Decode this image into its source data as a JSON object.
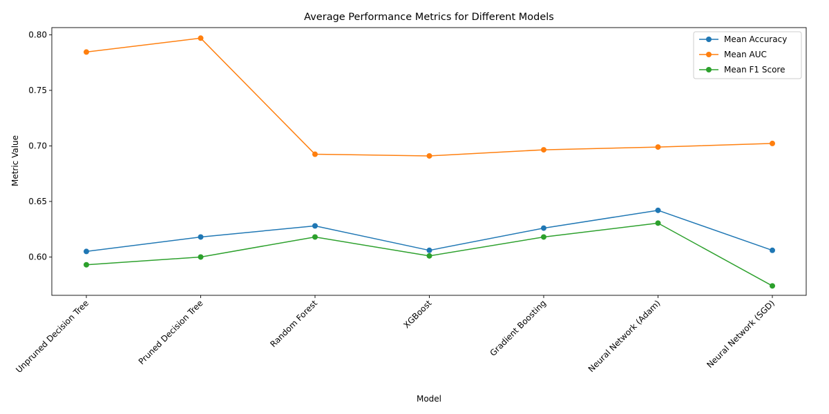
{
  "chart_data": {
    "type": "line",
    "title": "Average Performance Metrics for Different Models",
    "xlabel": "Model",
    "ylabel": "Metric Value",
    "categories": [
      "Unpruned Decision Tree",
      "Pruned Decision Tree",
      "Random Forest",
      "XGBoost",
      "Gradient Boosting",
      "Neural Network (Adam)",
      "Neural Network (SGD)"
    ],
    "series": [
      {
        "name": "Mean Accuracy",
        "color": "#1f77b4",
        "values": [
          0.605,
          0.618,
          0.628,
          0.606,
          0.626,
          0.642,
          0.606
        ]
      },
      {
        "name": "Mean AUC",
        "color": "#ff7f0e",
        "values": [
          0.7845,
          0.797,
          0.6925,
          0.691,
          0.6965,
          0.699,
          0.7022
        ]
      },
      {
        "name": "Mean F1 Score",
        "color": "#2ca02c",
        "values": [
          0.593,
          0.6,
          0.618,
          0.601,
          0.618,
          0.6305,
          0.574
        ]
      }
    ],
    "ylim": [
      0.5655,
      0.8065
    ],
    "yticks": [
      0.6,
      0.65,
      0.7,
      0.75,
      0.8
    ],
    "ytick_labels": [
      "0.60",
      "0.65",
      "0.70",
      "0.75",
      "0.80"
    ],
    "grid": false,
    "legend_position": "top-right",
    "marker": "circle",
    "x_tick_rotation": 45
  }
}
